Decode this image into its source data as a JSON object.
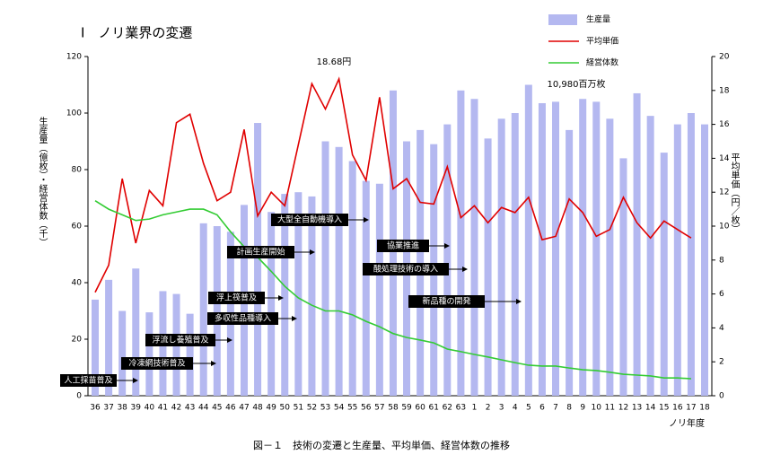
{
  "chart_data": {
    "type": "bar",
    "title": "Ⅰ　ノリ業界の変遷",
    "caption": "図－１　技術の変遷と生産量、平均単価、経営体数の推移",
    "x_label": "ノリ年度",
    "y_label": "生産量（億枚）・経営体数（千）",
    "y2_label": "平均単価（円／枚）",
    "categories": [
      "36",
      "37",
      "38",
      "39",
      "40",
      "41",
      "42",
      "43",
      "44",
      "45",
      "46",
      "47",
      "48",
      "49",
      "50",
      "51",
      "52",
      "53",
      "54",
      "55",
      "56",
      "57",
      "58",
      "59",
      "60",
      "61",
      "62",
      "63",
      "1",
      "2",
      "3",
      "4",
      "5",
      "6",
      "7",
      "8",
      "9",
      "10",
      "11",
      "12",
      "13",
      "14",
      "15",
      "16",
      "17",
      "18"
    ],
    "series": [
      {
        "name": "生産量",
        "type": "bar",
        "color": "#b4b8f0",
        "values": [
          34,
          41,
          30,
          45,
          29.5,
          37,
          36,
          29,
          61,
          60,
          58,
          67.5,
          96.5,
          65,
          71.4,
          72,
          70.5,
          90,
          88,
          83,
          76,
          75,
          108,
          90,
          94,
          89,
          96,
          108,
          105,
          91,
          98,
          100,
          110,
          103.5,
          104,
          94,
          105,
          104,
          98,
          84,
          107,
          99,
          86,
          96,
          100,
          96
        ]
      },
      {
        "name": "平均単価",
        "type": "line",
        "axis": "y2",
        "color": "#e00000",
        "values": [
          6.1,
          7.7,
          12.8,
          9.0,
          12.1,
          11.2,
          16.1,
          16.6,
          13.7,
          11.5,
          12.0,
          15.7,
          10.6,
          12.0,
          11.2,
          14.8,
          18.4,
          16.9,
          18.68,
          14.2,
          12.7,
          17.6,
          12.2,
          12.8,
          11.4,
          11.3,
          13.5,
          10.5,
          11.2,
          10.2,
          11.1,
          10.8,
          11.7,
          9.2,
          9.4,
          11.6,
          10.8,
          9.4,
          9.8,
          11.7,
          10.2,
          9.3,
          10.3,
          9.8,
          9.3,
          null
        ]
      },
      {
        "name": "経営体数",
        "type": "line",
        "color": "#33cc33",
        "values": [
          69,
          66,
          64,
          62,
          62.5,
          64,
          65,
          66,
          66,
          64,
          58,
          52.7,
          49,
          44,
          38.7,
          34.6,
          32,
          30,
          30,
          28.6,
          26.3,
          24.4,
          22,
          20.6,
          19.7,
          18.7,
          16.5,
          15.6,
          14.6,
          13.7,
          12.7,
          11.7,
          10.8,
          10.5,
          10.5,
          9.8,
          9.2,
          8.9,
          8.3,
          7.6,
          7.3,
          7.0,
          6.3,
          6.3,
          6.0,
          null
        ]
      }
    ],
    "ylim": [
      0,
      120
    ],
    "yticks": [
      0,
      20,
      40,
      60,
      80,
      100,
      120
    ],
    "y2lim": [
      0,
      20
    ],
    "y2ticks": [
      0,
      2,
      4,
      6,
      8,
      10,
      12,
      14,
      16,
      18,
      20
    ],
    "annotations": [
      "人工採苗普及",
      "冷凍網技術普及",
      "浮流し養殖普及",
      "多収性品種導入",
      "浮上筏普及",
      "計画生産開始",
      "大型全自動機導入",
      "協業推進",
      "酸処理技術の導入",
      "新品種の開発"
    ],
    "value_notes": [
      "18.68円",
      "10,980百万枚"
    ]
  }
}
